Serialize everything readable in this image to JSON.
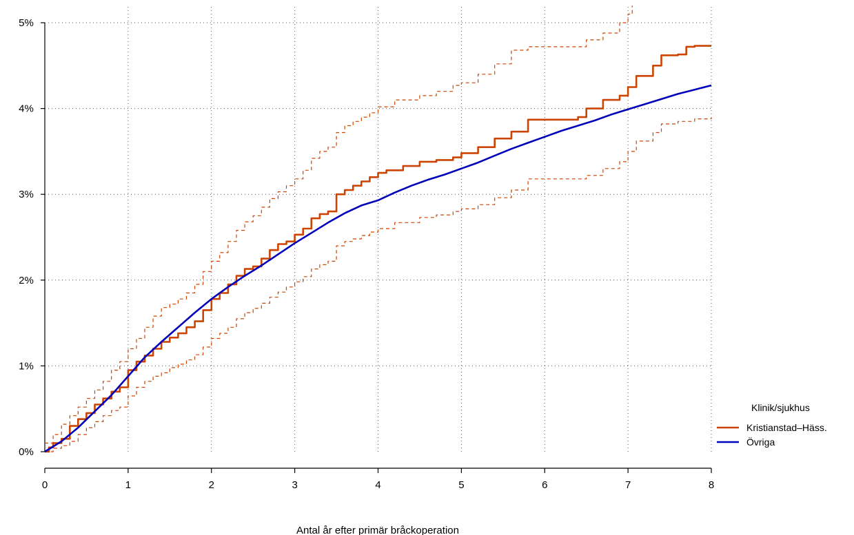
{
  "chart_data": {
    "type": "line",
    "title": "",
    "xlabel": "Antal år efter primär bråckoperation",
    "ylabel": "",
    "xlim": [
      0,
      8
    ],
    "ylim": [
      0,
      5
    ],
    "x_ticks": [
      0,
      1,
      2,
      3,
      4,
      5,
      6,
      7,
      8
    ],
    "x_tick_labels": [
      "0",
      "1",
      "2",
      "3",
      "4",
      "5",
      "6",
      "7",
      "8"
    ],
    "y_ticks": [
      0,
      1,
      2,
      3,
      4,
      5
    ],
    "y_tick_labels": [
      "0%",
      "1%",
      "2%",
      "3%",
      "4%",
      "5%"
    ],
    "grid": true,
    "legend": {
      "title": "Klinik/sjukhus",
      "placement": "right",
      "entries": [
        {
          "label": "Kristianstad–Häss.",
          "color": "#cc4400"
        },
        {
          "label": "Övriga",
          "color": "#0000bb"
        }
      ]
    },
    "series": [
      {
        "name": "Kristianstad–Häss.",
        "color": "#cc4400",
        "style": "step",
        "points": [
          [
            0,
            0
          ],
          [
            0.05,
            0.05
          ],
          [
            0.1,
            0.1
          ],
          [
            0.2,
            0.15
          ],
          [
            0.3,
            0.3
          ],
          [
            0.4,
            0.38
          ],
          [
            0.5,
            0.45
          ],
          [
            0.6,
            0.55
          ],
          [
            0.7,
            0.62
          ],
          [
            0.8,
            0.7
          ],
          [
            0.9,
            0.75
          ],
          [
            1.0,
            0.95
          ],
          [
            1.1,
            1.05
          ],
          [
            1.2,
            1.12
          ],
          [
            1.3,
            1.2
          ],
          [
            1.4,
            1.28
          ],
          [
            1.5,
            1.33
          ],
          [
            1.6,
            1.38
          ],
          [
            1.7,
            1.45
          ],
          [
            1.8,
            1.52
          ],
          [
            1.9,
            1.65
          ],
          [
            2.0,
            1.78
          ],
          [
            2.1,
            1.85
          ],
          [
            2.2,
            1.95
          ],
          [
            2.3,
            2.05
          ],
          [
            2.4,
            2.13
          ],
          [
            2.5,
            2.16
          ],
          [
            2.6,
            2.25
          ],
          [
            2.7,
            2.35
          ],
          [
            2.8,
            2.42
          ],
          [
            2.9,
            2.45
          ],
          [
            3.0,
            2.53
          ],
          [
            3.1,
            2.6
          ],
          [
            3.2,
            2.72
          ],
          [
            3.3,
            2.77
          ],
          [
            3.4,
            2.8
          ],
          [
            3.5,
            3.0
          ],
          [
            3.6,
            3.05
          ],
          [
            3.7,
            3.1
          ],
          [
            3.8,
            3.15
          ],
          [
            3.9,
            3.2
          ],
          [
            4.0,
            3.25
          ],
          [
            4.1,
            3.28
          ],
          [
            4.3,
            3.33
          ],
          [
            4.5,
            3.38
          ],
          [
            4.7,
            3.4
          ],
          [
            4.9,
            3.43
          ],
          [
            5.0,
            3.48
          ],
          [
            5.2,
            3.55
          ],
          [
            5.4,
            3.65
          ],
          [
            5.6,
            3.73
          ],
          [
            5.8,
            3.87
          ],
          [
            6.0,
            3.87
          ],
          [
            6.2,
            3.87
          ],
          [
            6.4,
            3.9
          ],
          [
            6.5,
            4.0
          ],
          [
            6.7,
            4.1
          ],
          [
            6.9,
            4.15
          ],
          [
            7.0,
            4.25
          ],
          [
            7.1,
            4.38
          ],
          [
            7.3,
            4.5
          ],
          [
            7.4,
            4.62
          ],
          [
            7.6,
            4.63
          ],
          [
            7.7,
            4.72
          ],
          [
            7.8,
            4.73
          ],
          [
            8.0,
            4.73
          ]
        ]
      },
      {
        "name": "Kristianstad–Häss. upper CI",
        "color": "#cc4400",
        "style": "dashed-step",
        "points": [
          [
            0,
            0.1
          ],
          [
            0.1,
            0.2
          ],
          [
            0.2,
            0.32
          ],
          [
            0.3,
            0.42
          ],
          [
            0.4,
            0.52
          ],
          [
            0.5,
            0.62
          ],
          [
            0.6,
            0.72
          ],
          [
            0.7,
            0.82
          ],
          [
            0.8,
            0.95
          ],
          [
            0.9,
            1.05
          ],
          [
            1.0,
            1.2
          ],
          [
            1.1,
            1.32
          ],
          [
            1.2,
            1.45
          ],
          [
            1.3,
            1.58
          ],
          [
            1.4,
            1.68
          ],
          [
            1.5,
            1.72
          ],
          [
            1.6,
            1.78
          ],
          [
            1.7,
            1.85
          ],
          [
            1.8,
            1.95
          ],
          [
            1.9,
            2.1
          ],
          [
            2.0,
            2.22
          ],
          [
            2.1,
            2.32
          ],
          [
            2.2,
            2.45
          ],
          [
            2.3,
            2.58
          ],
          [
            2.4,
            2.68
          ],
          [
            2.5,
            2.75
          ],
          [
            2.6,
            2.85
          ],
          [
            2.7,
            2.95
          ],
          [
            2.8,
            3.03
          ],
          [
            2.9,
            3.1
          ],
          [
            3.0,
            3.18
          ],
          [
            3.1,
            3.28
          ],
          [
            3.2,
            3.42
          ],
          [
            3.3,
            3.5
          ],
          [
            3.4,
            3.55
          ],
          [
            3.5,
            3.72
          ],
          [
            3.6,
            3.8
          ],
          [
            3.7,
            3.85
          ],
          [
            3.8,
            3.9
          ],
          [
            3.9,
            3.95
          ],
          [
            4.0,
            4.02
          ],
          [
            4.2,
            4.1
          ],
          [
            4.5,
            4.15
          ],
          [
            4.7,
            4.2
          ],
          [
            4.9,
            4.27
          ],
          [
            5.0,
            4.3
          ],
          [
            5.2,
            4.4
          ],
          [
            5.4,
            4.52
          ],
          [
            5.6,
            4.68
          ],
          [
            5.8,
            4.72
          ],
          [
            6.0,
            4.72
          ],
          [
            6.3,
            4.72
          ],
          [
            6.5,
            4.8
          ],
          [
            6.7,
            4.88
          ],
          [
            6.9,
            5.0
          ],
          [
            7.0,
            5.1
          ],
          [
            7.05,
            5.2
          ]
        ]
      },
      {
        "name": "Kristianstad–Häss. lower CI",
        "color": "#cc4400",
        "style": "dashed-step",
        "points": [
          [
            0,
            0
          ],
          [
            0.1,
            0.04
          ],
          [
            0.2,
            0.07
          ],
          [
            0.3,
            0.12
          ],
          [
            0.4,
            0.2
          ],
          [
            0.5,
            0.28
          ],
          [
            0.6,
            0.35
          ],
          [
            0.7,
            0.42
          ],
          [
            0.8,
            0.48
          ],
          [
            0.9,
            0.52
          ],
          [
            1.0,
            0.65
          ],
          [
            1.1,
            0.75
          ],
          [
            1.2,
            0.82
          ],
          [
            1.3,
            0.88
          ],
          [
            1.4,
            0.92
          ],
          [
            1.5,
            0.98
          ],
          [
            1.6,
            1.02
          ],
          [
            1.7,
            1.07
          ],
          [
            1.8,
            1.13
          ],
          [
            1.9,
            1.22
          ],
          [
            2.0,
            1.32
          ],
          [
            2.1,
            1.38
          ],
          [
            2.2,
            1.45
          ],
          [
            2.3,
            1.55
          ],
          [
            2.4,
            1.62
          ],
          [
            2.5,
            1.67
          ],
          [
            2.6,
            1.73
          ],
          [
            2.7,
            1.8
          ],
          [
            2.8,
            1.86
          ],
          [
            2.9,
            1.92
          ],
          [
            3.0,
            1.98
          ],
          [
            3.1,
            2.04
          ],
          [
            3.2,
            2.13
          ],
          [
            3.3,
            2.18
          ],
          [
            3.4,
            2.22
          ],
          [
            3.5,
            2.4
          ],
          [
            3.6,
            2.45
          ],
          [
            3.7,
            2.48
          ],
          [
            3.8,
            2.52
          ],
          [
            3.9,
            2.56
          ],
          [
            4.0,
            2.6
          ],
          [
            4.2,
            2.67
          ],
          [
            4.5,
            2.73
          ],
          [
            4.7,
            2.76
          ],
          [
            4.9,
            2.8
          ],
          [
            5.0,
            2.83
          ],
          [
            5.2,
            2.88
          ],
          [
            5.4,
            2.96
          ],
          [
            5.6,
            3.05
          ],
          [
            5.8,
            3.18
          ],
          [
            6.0,
            3.18
          ],
          [
            6.3,
            3.18
          ],
          [
            6.5,
            3.22
          ],
          [
            6.7,
            3.3
          ],
          [
            6.9,
            3.38
          ],
          [
            7.0,
            3.5
          ],
          [
            7.1,
            3.62
          ],
          [
            7.3,
            3.72
          ],
          [
            7.4,
            3.82
          ],
          [
            7.6,
            3.85
          ],
          [
            7.8,
            3.88
          ],
          [
            8.0,
            3.9
          ]
        ]
      },
      {
        "name": "Övriga",
        "color": "#0000bb",
        "style": "line",
        "points": [
          [
            0,
            0
          ],
          [
            0.2,
            0.12
          ],
          [
            0.4,
            0.28
          ],
          [
            0.6,
            0.47
          ],
          [
            0.8,
            0.66
          ],
          [
            1.0,
            0.88
          ],
          [
            1.2,
            1.1
          ],
          [
            1.4,
            1.28
          ],
          [
            1.6,
            1.45
          ],
          [
            1.8,
            1.62
          ],
          [
            2.0,
            1.78
          ],
          [
            2.2,
            1.92
          ],
          [
            2.4,
            2.05
          ],
          [
            2.6,
            2.17
          ],
          [
            2.8,
            2.3
          ],
          [
            3.0,
            2.43
          ],
          [
            3.2,
            2.55
          ],
          [
            3.4,
            2.67
          ],
          [
            3.6,
            2.78
          ],
          [
            3.8,
            2.87
          ],
          [
            4.0,
            2.93
          ],
          [
            4.2,
            3.02
          ],
          [
            4.4,
            3.1
          ],
          [
            4.6,
            3.17
          ],
          [
            4.8,
            3.23
          ],
          [
            5.0,
            3.3
          ],
          [
            5.2,
            3.37
          ],
          [
            5.4,
            3.45
          ],
          [
            5.6,
            3.53
          ],
          [
            5.8,
            3.6
          ],
          [
            6.0,
            3.67
          ],
          [
            6.2,
            3.74
          ],
          [
            6.4,
            3.8
          ],
          [
            6.6,
            3.86
          ],
          [
            6.8,
            3.93
          ],
          [
            7.0,
            3.99
          ],
          [
            7.2,
            4.05
          ],
          [
            7.4,
            4.11
          ],
          [
            7.6,
            4.17
          ],
          [
            7.8,
            4.22
          ],
          [
            8.0,
            4.27
          ]
        ]
      }
    ]
  }
}
